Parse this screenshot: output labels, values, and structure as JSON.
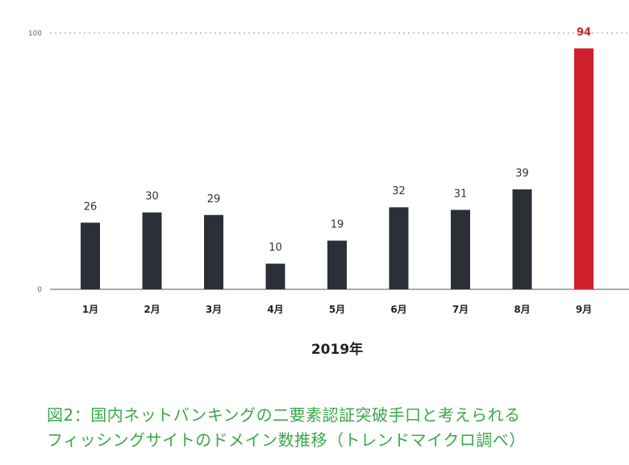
{
  "chart_data": {
    "type": "bar",
    "categories": [
      "1月",
      "2月",
      "3月",
      "4月",
      "5月",
      "6月",
      "7月",
      "8月",
      "9月"
    ],
    "values": [
      26,
      30,
      29,
      10,
      19,
      32,
      31,
      39,
      94
    ],
    "xlabel": "2019年",
    "ylabel": "",
    "ylim": [
      0,
      100
    ],
    "yticks": [
      0,
      100
    ],
    "highlight_index": 8,
    "grid": "dotted line at y=100",
    "colors": {
      "bar": "#2b3038",
      "highlight": "#d0202c",
      "label": "#333333",
      "highlight_label": "#d0202c",
      "axis": "#555555",
      "gridline": "#999999"
    }
  },
  "caption": {
    "line1": "図2：国内ネットバンキングの二要素認証突破手口と考えられる",
    "line2": "フィッシングサイトのドメイン数推移（トレンドマイクロ調べ）",
    "color": "#3aa84a"
  }
}
